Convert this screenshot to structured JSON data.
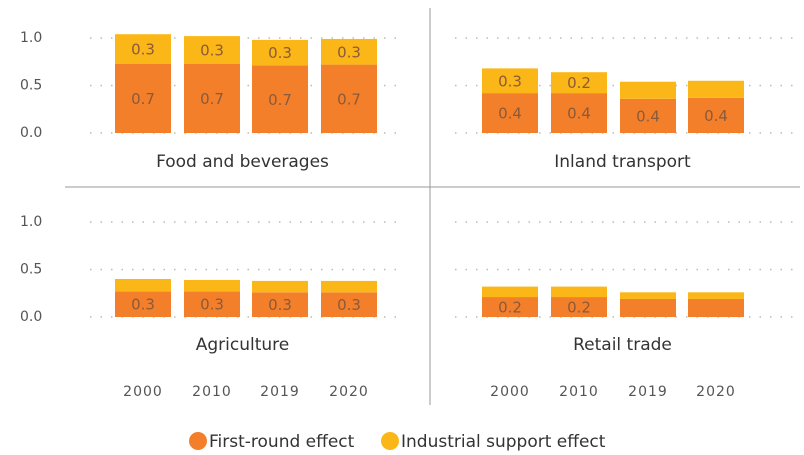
{
  "chart_data": {
    "type": "bar",
    "stacked": true,
    "categories": [
      "2000",
      "2010",
      "2019",
      "2020"
    ],
    "ylim": [
      0,
      1.1
    ],
    "yticks": [
      {
        "value": 0,
        "label": "0.0"
      },
      {
        "value": 0.5,
        "label": "0.5"
      },
      {
        "value": 1,
        "label": "1.0"
      }
    ],
    "grid": true,
    "series": [
      {
        "name": "First-round effect",
        "color": "#f47f2a"
      },
      {
        "name": "Industrial support effect",
        "color": "#fbb718"
      }
    ],
    "panels": [
      {
        "title": "Food and beverages",
        "series": [
          {
            "values": [
              0.73,
              0.73,
              0.71,
              0.72
            ],
            "value_labels": [
              "0.7",
              "0.7",
              "0.7",
              "0.7"
            ]
          },
          {
            "values": [
              0.31,
              0.29,
              0.27,
              0.27
            ],
            "value_labels": [
              "0.3",
              "0.3",
              "0.3",
              "0.3"
            ]
          }
        ]
      },
      {
        "title": "Inland transport",
        "series": [
          {
            "values": [
              0.42,
              0.42,
              0.36,
              0.37
            ],
            "value_labels": [
              "0.4",
              "0.4",
              "0.4",
              "0.4"
            ]
          },
          {
            "values": [
              0.26,
              0.22,
              0.18,
              0.18
            ],
            "value_labels": [
              "0.3",
              "0.2",
              null,
              null
            ]
          }
        ]
      },
      {
        "title": "Agriculture",
        "series": [
          {
            "values": [
              0.27,
              0.27,
              0.26,
              0.26
            ],
            "value_labels": [
              "0.3",
              "0.3",
              "0.3",
              "0.3"
            ]
          },
          {
            "values": [
              0.13,
              0.12,
              0.12,
              0.12
            ],
            "value_labels": [
              null,
              null,
              null,
              null
            ]
          }
        ]
      },
      {
        "title": "Retail trade",
        "series": [
          {
            "values": [
              0.21,
              0.21,
              0.19,
              0.19
            ],
            "value_labels": [
              "0.2",
              "0.2",
              null,
              null
            ]
          },
          {
            "values": [
              0.11,
              0.11,
              0.07,
              0.07
            ],
            "value_labels": [
              null,
              null,
              null,
              null
            ]
          }
        ]
      }
    ]
  }
}
